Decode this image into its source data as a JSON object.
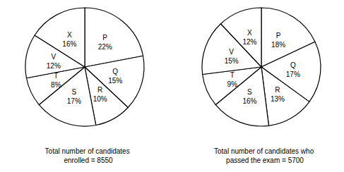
{
  "chart_data": [
    {
      "type": "pie",
      "title": "Total number of candidates enrolled = 8550",
      "categories": [
        "P",
        "Q",
        "R",
        "S",
        "T",
        "V",
        "X"
      ],
      "values": [
        22,
        15,
        10,
        17,
        8,
        12,
        16
      ],
      "value_labels": [
        "22%",
        "15%",
        "10%",
        "17%",
        "8%",
        "12%",
        "16%"
      ],
      "color": "#ffffff",
      "data_labels": true
    },
    {
      "type": "pie",
      "title": "Total number of candidates who passed the exam = 5700",
      "categories": [
        "P",
        "Q",
        "R",
        "S",
        "T",
        "V",
        "X"
      ],
      "values": [
        18,
        17,
        13,
        16,
        9,
        15,
        12
      ],
      "value_labels": [
        "18%",
        "17%",
        "13%",
        "16%",
        "9%",
        "15%",
        "12%"
      ],
      "color": "#ffffff",
      "data_labels": true
    }
  ]
}
